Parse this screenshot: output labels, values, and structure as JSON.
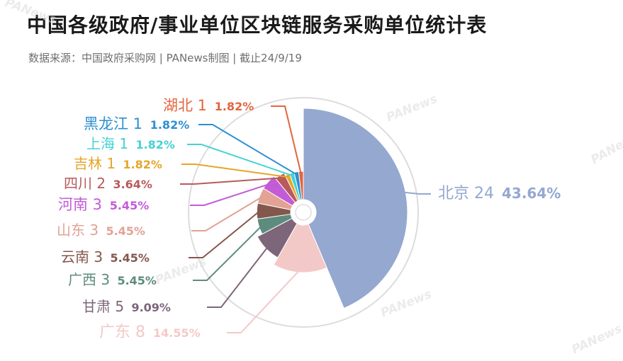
{
  "title": "中国各级政府/事业单位区块链服务采购单位统计表",
  "subtitle": "数据来源：中国政府采购网 | PANews制图 | 截止24/9/19",
  "watermark": "PANews",
  "chart_data": {
    "type": "pie",
    "variant": "rose",
    "title": "中国各级政府/事业单位区块链服务采购单位统计表",
    "slices": [
      {
        "name": "北京",
        "value": 24,
        "percent": "43.64%",
        "color": "#94a8d0"
      },
      {
        "name": "广东",
        "value": 8,
        "percent": "14.55%",
        "color": "#f3c9c7"
      },
      {
        "name": "甘肃",
        "value": 5,
        "percent": "9.09%",
        "color": "#7d6679"
      },
      {
        "name": "广西",
        "value": 3,
        "percent": "5.45%",
        "color": "#5d8c7f"
      },
      {
        "name": "云南",
        "value": 3,
        "percent": "5.45%",
        "color": "#84574c"
      },
      {
        "name": "山东",
        "value": 3,
        "percent": "5.45%",
        "color": "#e2a294"
      },
      {
        "name": "河南",
        "value": 3,
        "percent": "5.45%",
        "color": "#c25cd6"
      },
      {
        "name": "四川",
        "value": 2,
        "percent": "3.64%",
        "color": "#b85a5c"
      },
      {
        "name": "吉林",
        "value": 1,
        "percent": "1.82%",
        "color": "#e7a52a"
      },
      {
        "name": "上海",
        "value": 1,
        "percent": "1.82%",
        "color": "#46d2d2"
      },
      {
        "name": "黑龙江",
        "value": 1,
        "percent": "1.82%",
        "color": "#2d8fd2"
      },
      {
        "name": "湖北",
        "value": 1,
        "percent": "1.82%",
        "color": "#e5643e"
      }
    ]
  }
}
